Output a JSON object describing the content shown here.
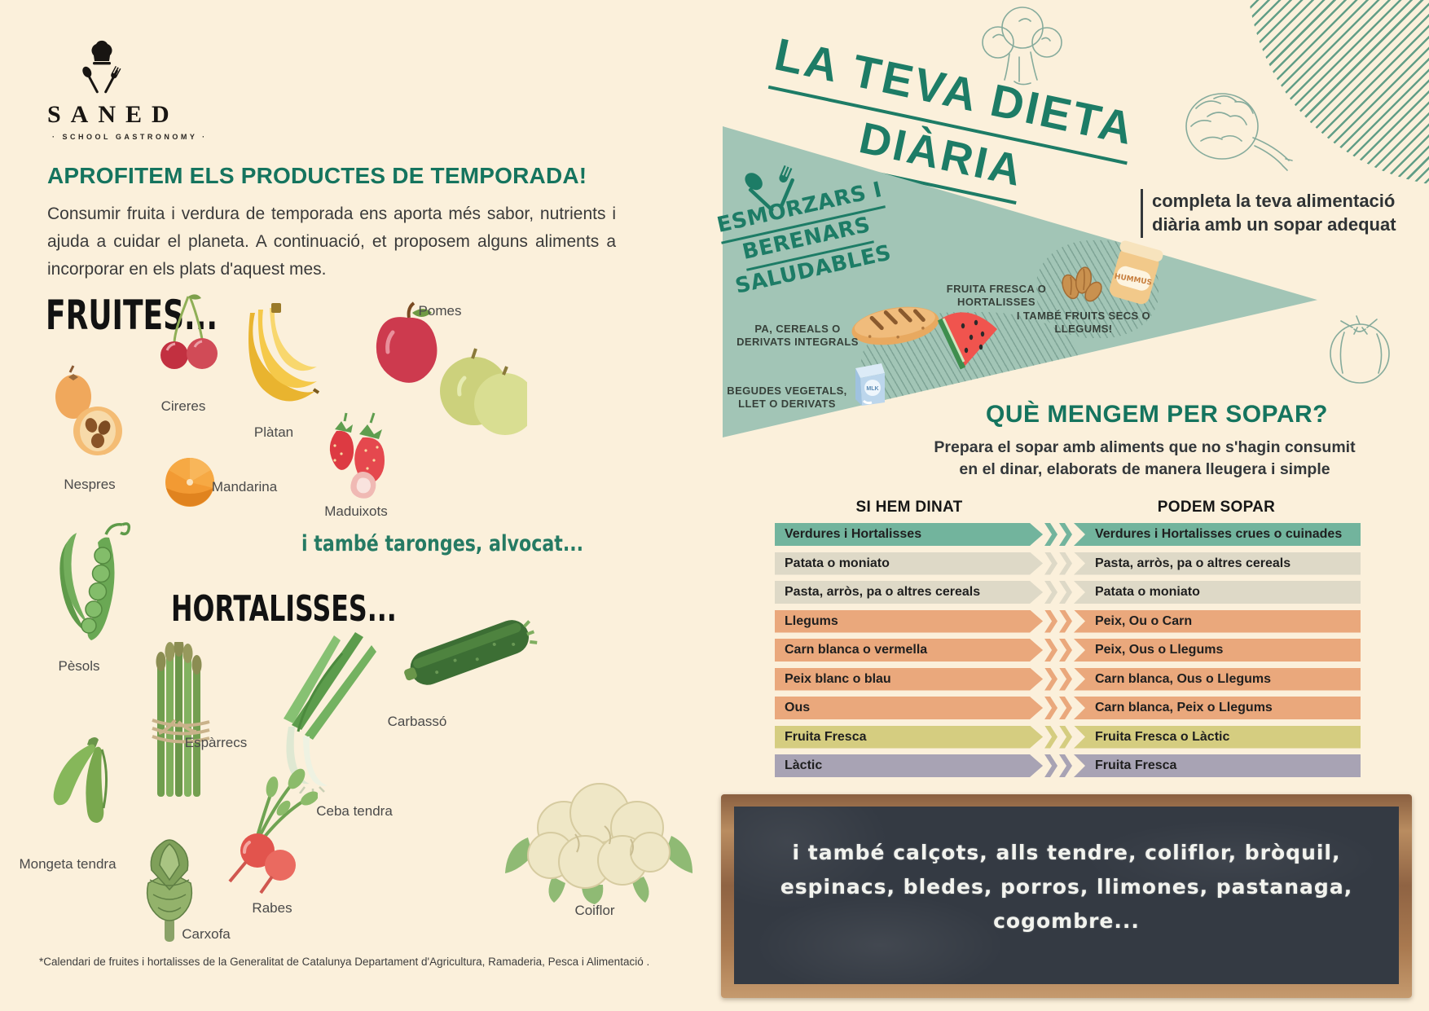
{
  "logo": {
    "brand": "SANED",
    "tagline": "· SCHOOL GASTRONOMY ·"
  },
  "seasonal": {
    "heading": "APROFITEM ELS PRODUCTES DE TEMPORADA!",
    "intro": "Consumir fruita i verdura de temporada ens aporta més sabor, nutrients i ajuda a cuidar el planeta. A continuació, et proposem alguns aliments a incorporar en els plats d'aquest mes.",
    "fruits_title": "FRUITES...",
    "fruits": [
      {
        "label": "Nespres"
      },
      {
        "label": "Cireres"
      },
      {
        "label": "Plàtan"
      },
      {
        "label": "Mandarina"
      },
      {
        "label": "Maduixots"
      },
      {
        "label": "Pomes"
      }
    ],
    "fruits_note": "i també taronges, alvocat...",
    "vegetables_title": "HORTALISSES...",
    "vegetables": [
      {
        "label": "Pèsols"
      },
      {
        "label": "Espàrrecs"
      },
      {
        "label": "Ceba tendra"
      },
      {
        "label": "Carbassó"
      },
      {
        "label": "Mongeta tendra"
      },
      {
        "label": "Carxofa"
      },
      {
        "label": "Rabes"
      },
      {
        "label": "Coiflor"
      }
    ],
    "footnote": "*Calendari de fruites i hortalisses de la Generalitat de Catalunya Departament d'Agricultura,  Ramaderia, Pesca i Alimentació ."
  },
  "diet": {
    "title_line1": "LA TEVA DIETA",
    "title_line2": "DIÀRIA",
    "note_line1": "completa la teva alimentació",
    "note_line2": "diària amb un sopar adequat",
    "banner": {
      "heading_line1": "ESMORZARS I",
      "heading_line2": "BERENARS",
      "heading_line3": "SALUDABLES",
      "label_bread": "PA, CEREALS O DERIVATS INTEGRALS",
      "label_fruit": "FRUITA FRESCA O HORTALISSES",
      "label_nuts": "I  TAMBÉ FRUITS SECS O LLEGUMS!",
      "label_milk": "BEGUDES VEGETALS, LLET O DERIVATS",
      "hummus_jar_text": "HUMMUS",
      "milk_carton_text": "MLK"
    },
    "dinner": {
      "heading": "QUÈ MENGEM PER SOPAR?",
      "intro_line1": "Prepara el sopar amb aliments que no s'hagin consumit",
      "intro_line2": "en el dinar, elaborats de manera lleugera i simple",
      "col_lunch": "SI HEM DINAT",
      "col_dinner": "PODEM SOPAR",
      "rows": [
        {
          "lunch": "Verdures i Hortalisses",
          "dinner": "Verdures i Hortalisses crues o cuinades",
          "color": "#72b49d"
        },
        {
          "lunch": "Patata o moniato",
          "dinner": "Pasta, arròs, pa o altres cereals",
          "color": "#ded9c7"
        },
        {
          "lunch": "Pasta, arròs, pa o altres cereals",
          "dinner": "Patata o moniato",
          "color": "#ded9c7"
        },
        {
          "lunch": "Llegums",
          "dinner": "Peix, Ou o Carn",
          "color": "#eaa87c"
        },
        {
          "lunch": "Carn blanca o vermella",
          "dinner": "Peix, Ous o Llegums",
          "color": "#eaa87c"
        },
        {
          "lunch": "Peix blanc o blau",
          "dinner": "Carn blanca, Ous o Llegums",
          "color": "#eaa87c"
        },
        {
          "lunch": "Ous",
          "dinner": "Carn blanca, Peix o Llegums",
          "color": "#eaa87c"
        },
        {
          "lunch": "Fruita Fresca",
          "dinner": "Fruita Fresca o Làctic",
          "color": "#d5cd80"
        },
        {
          "lunch": "Làctic",
          "dinner": "Fruita Fresca",
          "color": "#a8a3b4"
        }
      ]
    },
    "chalkboard_line1": "i també calçots, alls tendre, coliflor, bròquil,",
    "chalkboard_line2": "espinacs, bledes, porros, llimones, pastanaga,",
    "chalkboard_line3": "cogombre..."
  },
  "colors": {
    "background": "#fbf0db",
    "teal_text": "#1d7c66",
    "banner_fill": "#a2c5b6",
    "dark_text": "#3a3a3a",
    "chalkboard": "#343a43",
    "wood_frame": "#a97350"
  }
}
